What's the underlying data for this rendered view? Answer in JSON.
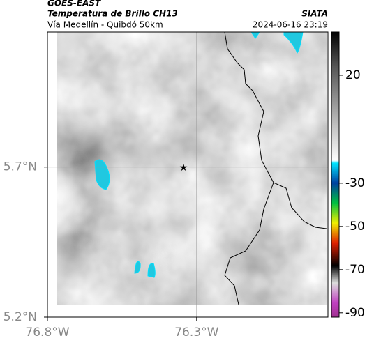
{
  "header": {
    "satellite": "GOES-EAST",
    "product": "Temperatura de Brillo CH13",
    "source": "SIATA",
    "region": "Vía Medellín - Quibdó 50km",
    "datetime": "2024-06-16 23:19"
  },
  "map": {
    "xlim": [
      -76.8,
      -75.86
    ],
    "ylim": [
      5.2,
      6.15
    ],
    "xticks": [
      {
        "value": -76.8,
        "label": "76.8°W"
      },
      {
        "value": -76.3,
        "label": "76.3°W"
      }
    ],
    "yticks": [
      {
        "value": 5.2,
        "label": "5.2°N"
      },
      {
        "value": 5.7,
        "label": "5.7°N"
      }
    ],
    "grid": true
  },
  "colorbar": {
    "lim": [
      -92,
      40
    ],
    "ticks": [
      20,
      -30,
      -50,
      -70,
      -90
    ]
  }
}
